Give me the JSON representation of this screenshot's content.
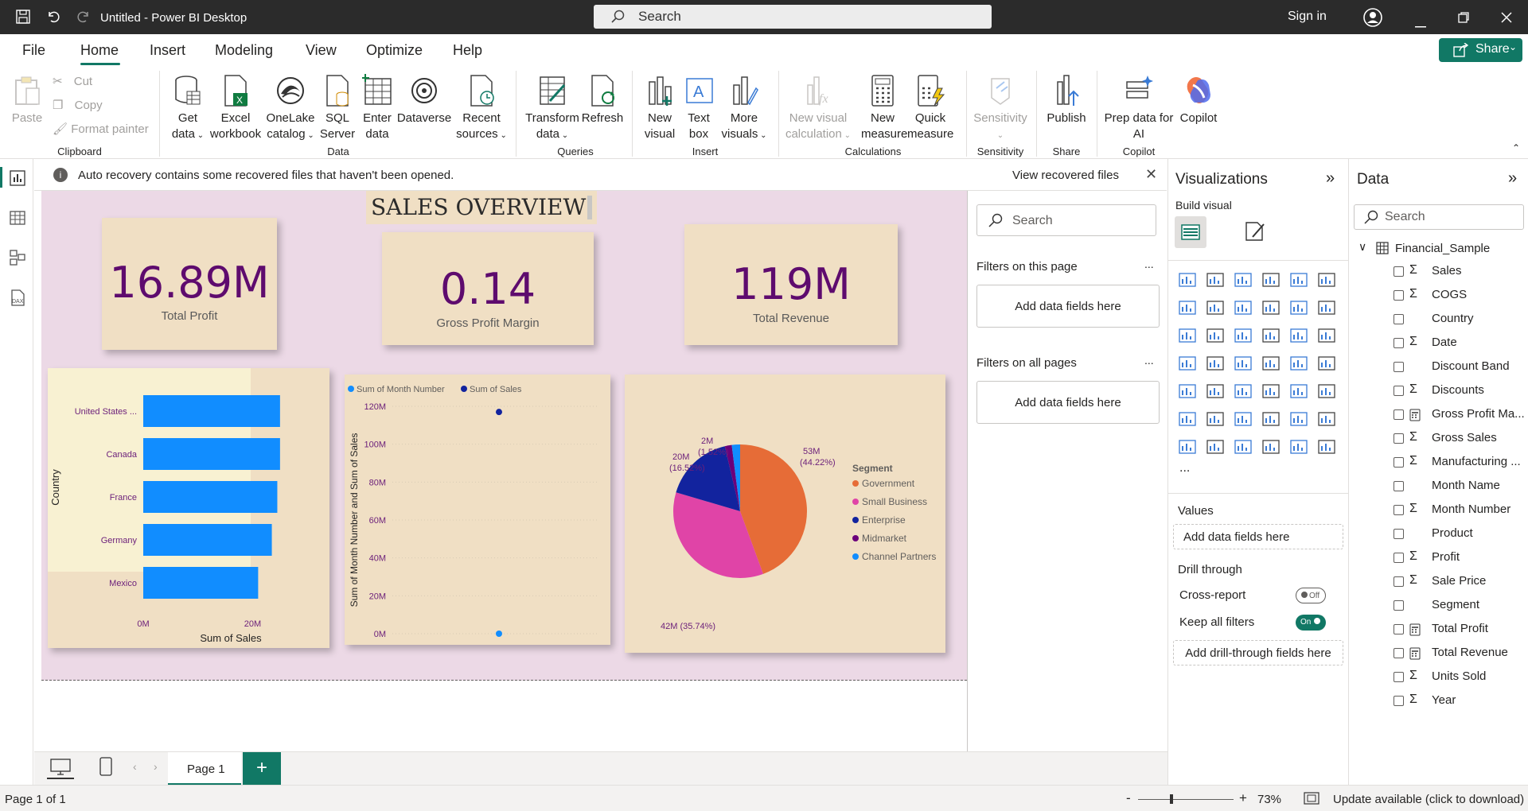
{
  "titlebar": {
    "title": "Untitled - Power BI Desktop",
    "search_placeholder": "Search",
    "signin": "Sign in"
  },
  "menu": {
    "items": [
      "File",
      "Home",
      "Insert",
      "Modeling",
      "View",
      "Optimize",
      "Help"
    ],
    "active": "Home",
    "share": "Share"
  },
  "ribbon": {
    "clipboard": {
      "paste": "Paste",
      "cut": "Cut",
      "copy": "Copy",
      "format_painter": "Format painter",
      "group": "Clipboard"
    },
    "data": {
      "get_data_1": "Get",
      "get_data_2": "data",
      "excel_1": "Excel",
      "excel_2": "workbook",
      "onelake_1": "OneLake",
      "onelake_2": "catalog",
      "sql_1": "SQL",
      "sql_2": "Server",
      "enter_1": "Enter",
      "enter_2": "data",
      "dataverse": "Dataverse",
      "recent_1": "Recent",
      "recent_2": "sources",
      "group": "Data"
    },
    "queries": {
      "transform_1": "Transform",
      "transform_2": "data",
      "refresh": "Refresh",
      "group": "Queries"
    },
    "insert": {
      "new_visual_1": "New",
      "new_visual_2": "visual",
      "text_box_1": "Text",
      "text_box_2": "box",
      "more_visuals_1": "More",
      "more_visuals_2": "visuals",
      "group": "Insert"
    },
    "calculations": {
      "new_visual_calc_1": "New visual",
      "new_visual_calc_2": "calculation",
      "new_measure_1": "New",
      "new_measure_2": "measure",
      "quick_measure_1": "Quick",
      "quick_measure_2": "measure",
      "group": "Calculations"
    },
    "sensitivity": {
      "label": "Sensitivity",
      "group": "Sensitivity"
    },
    "share": {
      "publish": "Publish",
      "group": "Share"
    },
    "copilot": {
      "prep_1": "Prep data for",
      "prep_2": "AI",
      "copilot": "Copilot",
      "group": "Copilot"
    }
  },
  "infobar": {
    "message": "Auto recovery contains some recovered files that haven't been opened.",
    "action": "View recovered files"
  },
  "report": {
    "title": "SALES OVERVIEW",
    "cards": [
      {
        "value": "16.89M",
        "label": "Total Profit"
      },
      {
        "value": "0.14",
        "label": "Gross Profit Margin"
      },
      {
        "value": "119M",
        "label": "Total Revenue"
      }
    ]
  },
  "chart_data": [
    {
      "type": "bar",
      "categories": [
        "United States ...",
        "Canada",
        "France",
        "Germany",
        "Mexico"
      ],
      "values": [
        25,
        25,
        24.5,
        23.5,
        21
      ],
      "xlabel": "Sum of Sales",
      "ylabel": "Country",
      "xticks": [
        "0M",
        "20M"
      ],
      "xlim": [
        0,
        32
      ],
      "color": "#118dff"
    },
    {
      "type": "scatter",
      "series": [
        {
          "name": "Sum of Month Number",
          "color": "#118dff",
          "points": [
            [
              0,
              0
            ]
          ]
        },
        {
          "name": "Sum of  Sales",
          "color": "#12239e",
          "points": [
            [
              0,
              117
            ]
          ]
        }
      ],
      "ylabel": "Sum of Month Number and Sum of Sales",
      "yticks": [
        "0M",
        "20M",
        "40M",
        "60M",
        "80M",
        "100M",
        "120M"
      ],
      "ylim": [
        0,
        120
      ]
    },
    {
      "type": "pie",
      "legend_title": "Segment",
      "slices": [
        {
          "name": "Government",
          "value": 53,
          "color": "#e66c37",
          "label_1": "53M",
          "label_2": "(44.22%)"
        },
        {
          "name": "Small Business",
          "value": 42,
          "color": "#e044a7",
          "label_1": "42M (35.74%)",
          "label_2": ""
        },
        {
          "name": "Enterprise",
          "value": 20,
          "color": "#12239e",
          "label_1": "20M",
          "label_2": "(16.52%)"
        },
        {
          "name": "Midmarket",
          "value": 2,
          "color": "#6b007b",
          "label_1": "2M",
          "label_2": "(1.52%)"
        },
        {
          "name": "Channel Partners",
          "value": 2.4,
          "color": "#118dff",
          "label_1": "",
          "label_2": ""
        }
      ]
    }
  ],
  "filters": {
    "search_placeholder": "Search",
    "on_page": "Filters on this page",
    "on_all": "Filters on all pages",
    "add": "Add data fields here",
    "more": "..."
  },
  "visualizations": {
    "title": "Visualizations",
    "build": "Build visual",
    "values": "Values",
    "values_add": "Add data fields here",
    "drill": "Drill through",
    "cross_report": "Cross-report",
    "cross_state": "Off",
    "keep_filters": "Keep all filters",
    "keep_state": "On",
    "drill_add": "Add drill-through fields here",
    "more": "..."
  },
  "data_pane": {
    "title": "Data",
    "search_placeholder": "Search",
    "table": "Financial_Sample",
    "fields": [
      {
        "name": "Sales",
        "icon": "sigma"
      },
      {
        "name": "COGS",
        "icon": "sigma"
      },
      {
        "name": "Country",
        "icon": "none"
      },
      {
        "name": "Date",
        "icon": "sigma"
      },
      {
        "name": "Discount Band",
        "icon": "none"
      },
      {
        "name": "Discounts",
        "icon": "sigma"
      },
      {
        "name": "Gross Profit Ma...",
        "icon": "calc"
      },
      {
        "name": "Gross Sales",
        "icon": "sigma"
      },
      {
        "name": "Manufacturing ...",
        "icon": "sigma"
      },
      {
        "name": "Month Name",
        "icon": "none"
      },
      {
        "name": "Month Number",
        "icon": "sigma"
      },
      {
        "name": "Product",
        "icon": "none"
      },
      {
        "name": "Profit",
        "icon": "sigma"
      },
      {
        "name": "Sale Price",
        "icon": "sigma"
      },
      {
        "name": "Segment",
        "icon": "none"
      },
      {
        "name": "Total Profit",
        "icon": "calc"
      },
      {
        "name": "Total Revenue",
        "icon": "calc"
      },
      {
        "name": "Units Sold",
        "icon": "sigma"
      },
      {
        "name": "Year",
        "icon": "sigma"
      }
    ]
  },
  "bottom": {
    "page_tab": "Page 1",
    "add": "+"
  },
  "status": {
    "page_info": "Page 1 of 1",
    "zoom": "73%",
    "update": "Update available (click to download)",
    "minus": "-",
    "plus": "+"
  }
}
